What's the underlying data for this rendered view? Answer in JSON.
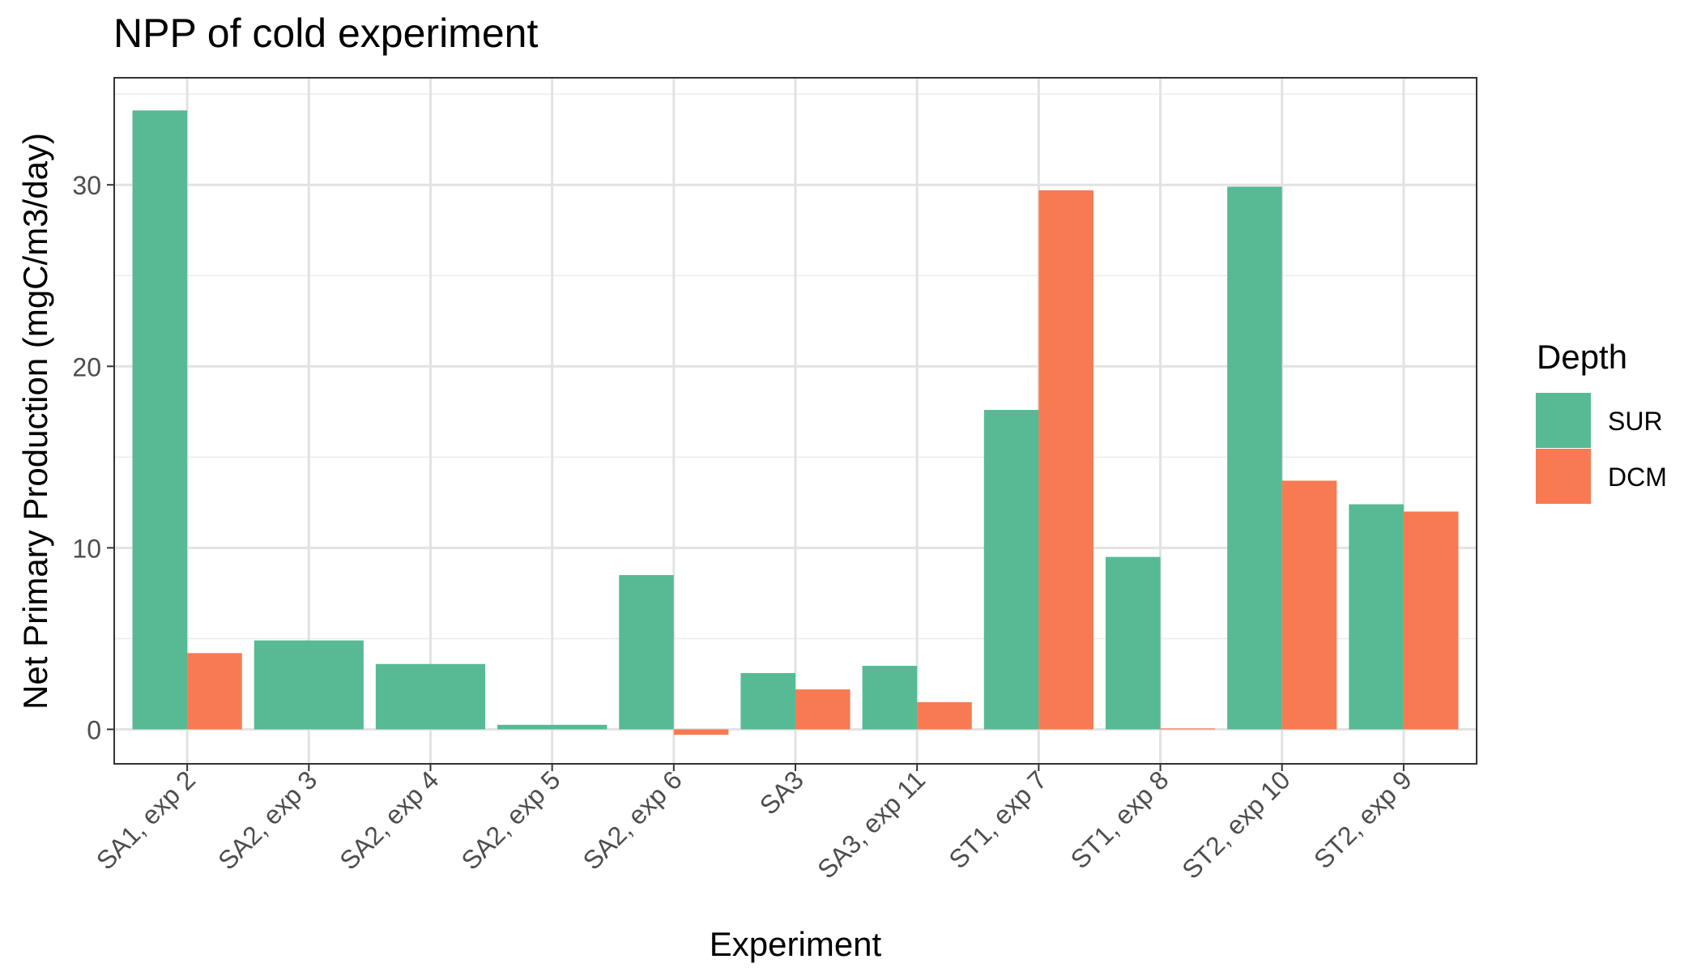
{
  "chart_data": {
    "type": "bar",
    "title": "NPP of cold experiment",
    "xlabel": "Experiment",
    "ylabel": "Net Primary Production (mgC/m3/day)",
    "categories": [
      "SA1, exp 2",
      "SA2, exp 3",
      "SA2, exp 4",
      "SA2, exp 5",
      "SA2, exp 6",
      "SA3",
      "SA3, exp 11",
      "ST1, exp 7",
      "ST1, exp 8",
      "ST2, exp 10",
      "ST2, exp 9"
    ],
    "series": [
      {
        "name": "SUR",
        "color": "#57BA94",
        "values": [
          34.1,
          4.9,
          3.6,
          0.25,
          8.5,
          3.1,
          3.5,
          17.6,
          9.5,
          29.9,
          12.4
        ]
      },
      {
        "name": "DCM",
        "color": "#F77A52",
        "values": [
          4.2,
          null,
          null,
          null,
          -0.3,
          2.2,
          1.5,
          29.7,
          0.05,
          13.7,
          12.0
        ]
      }
    ],
    "ylim": [
      -1.9,
      35.9
    ],
    "yticks": [
      0,
      10,
      20,
      30
    ],
    "grid": true,
    "legend": {
      "title": "Depth",
      "position": "right"
    }
  }
}
